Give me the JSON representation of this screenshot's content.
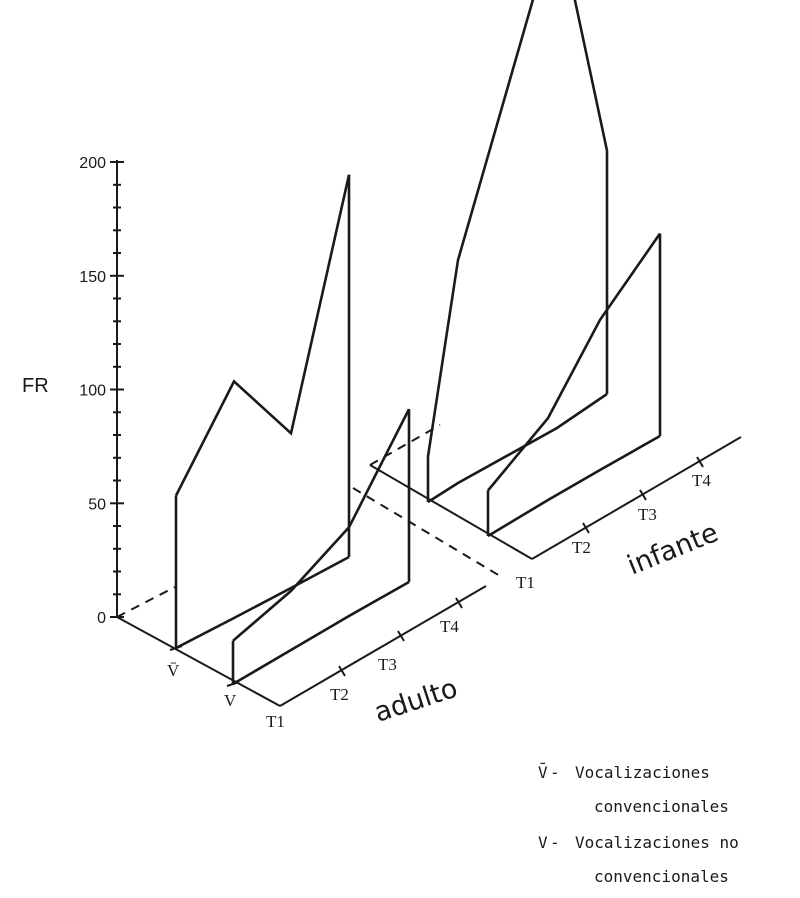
{
  "chart_data": {
    "type": "line",
    "title": "",
    "ylabel": "FR",
    "ylim": [
      0,
      200
    ],
    "yticks": [
      "0",
      "50",
      "100",
      "150",
      "200"
    ],
    "x_ticks": [
      "T1",
      "T2",
      "T3",
      "T4"
    ],
    "depth_ticks": [
      "V̄",
      "V"
    ],
    "groups": [
      {
        "name": "adulto",
        "series": [
          {
            "name": "V̄",
            "values": [
              67,
              104,
              68,
              168
            ]
          },
          {
            "name": "V",
            "values": [
              19,
              26,
              39,
              76
            ]
          }
        ]
      },
      {
        "name": "infante",
        "series": [
          {
            "name": "V̄",
            "values": [
              20,
              98,
              225,
              107
            ]
          },
          {
            "name": "V",
            "values": [
              20,
              36,
              66,
              89
            ]
          }
        ]
      }
    ],
    "legend": [
      {
        "symbol": "V̄",
        "lines": [
          "Vocalizaciones",
          "convencionales"
        ]
      },
      {
        "symbol": "V",
        "lines": [
          "Vocalizaciones no",
          "convencionales"
        ]
      }
    ]
  },
  "legend_separator": "-",
  "colors": {
    "ink": "#1a1a1a",
    "background": "#ffffff"
  }
}
